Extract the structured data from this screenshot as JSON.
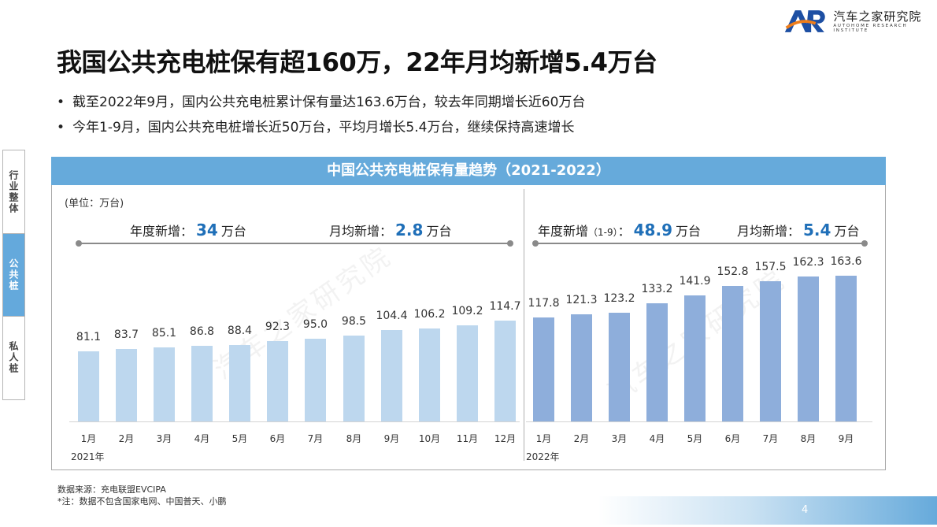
{
  "logo": {
    "name": "汽车之家研究院",
    "subtitle": "AUTOHOME RESEARCH INSTITUTE"
  },
  "title": "我国公共充电桩保有超160万，22年月均新增5.4万台",
  "bullets": [
    "截至2022年9月，国内公共充电桩累计保有量达163.6万台，较去年同期增长近60万台",
    "今年1-9月，国内公共充电桩增长近50万台，平均月增长5.4万台，继续保持高速增长"
  ],
  "sidetabs": [
    {
      "label": "行业整体",
      "active": false
    },
    {
      "label": "公共桩",
      "active": true
    },
    {
      "label": "私人桩",
      "active": false
    }
  ],
  "chart_header": "中国公共充电桩保有量趋势（2021-2022）",
  "unit": "(单位：万台)",
  "stats_2021": {
    "annual_label": "年度新增：",
    "annual_value": "34",
    "annual_unit": "万台",
    "monthly_label": "月均新增：",
    "monthly_value": "2.8",
    "monthly_unit": "万台"
  },
  "stats_2022": {
    "annual_label": "年度新增",
    "annual_range": "（1-9）",
    "annual_colon": "：",
    "annual_value": "48.9",
    "annual_unit": "万台",
    "monthly_label": "月均新增：",
    "monthly_value": "5.4",
    "monthly_unit": "万台"
  },
  "year_labels": [
    "2021年",
    "2022年"
  ],
  "watermark": "汽车之家研究院",
  "source": "数据来源：充电联盟EVCIPA",
  "note": "*注：数据不包含国家电网、中国普天、小鹏",
  "page_number": "4",
  "colors": {
    "bar_2021": "#bdd7ee",
    "bar_2022": "#8eaedb",
    "header": "#66aadb",
    "highlight": "#1f6fb8"
  },
  "chart_data": {
    "type": "bar",
    "title": "中国公共充电桩保有量趋势（2021-2022）",
    "xlabel": "",
    "ylabel": "万台",
    "categories": [
      "2021-1月",
      "2021-2月",
      "2021-3月",
      "2021-4月",
      "2021-5月",
      "2021-6月",
      "2021-7月",
      "2021-8月",
      "2021-9月",
      "2021-10月",
      "2021-11月",
      "2021-12月",
      "2022-1月",
      "2022-2月",
      "2022-3月",
      "2022-4月",
      "2022-5月",
      "2022-6月",
      "2022-7月",
      "2022-8月",
      "2022-9月"
    ],
    "x_tick_labels": [
      "1月",
      "2月",
      "3月",
      "4月",
      "5月",
      "6月",
      "7月",
      "8月",
      "9月",
      "10月",
      "11月",
      "12月",
      "1月",
      "2月",
      "3月",
      "4月",
      "5月",
      "6月",
      "7月",
      "8月",
      "9月"
    ],
    "series": [
      {
        "name": "2021年",
        "values": [
          81.1,
          83.7,
          85.1,
          86.8,
          88.4,
          92.3,
          95.0,
          98.5,
          104.4,
          106.2,
          109.2,
          114.7
        ]
      },
      {
        "name": "2022年",
        "values": [
          117.8,
          121.3,
          123.2,
          133.2,
          141.9,
          152.8,
          157.5,
          162.3,
          163.6
        ]
      }
    ],
    "value_labels": [
      "81.1",
      "83.7",
      "85.1",
      "86.8",
      "88.4",
      "92.3",
      "95.0",
      "98.5",
      "104.4",
      "106.2",
      "109.2",
      "114.7",
      "117.8",
      "121.3",
      "123.2",
      "133.2",
      "141.9",
      "152.8",
      "157.5",
      "162.3",
      "163.6"
    ],
    "annotations": [
      "2021 年度新增：34 万台",
      "2021 月均新增：2.8 万台",
      "2022 年度新增（1-9）：48.9 万台",
      "2022 月均新增：5.4 万台"
    ],
    "grid": false,
    "legend": "none"
  }
}
